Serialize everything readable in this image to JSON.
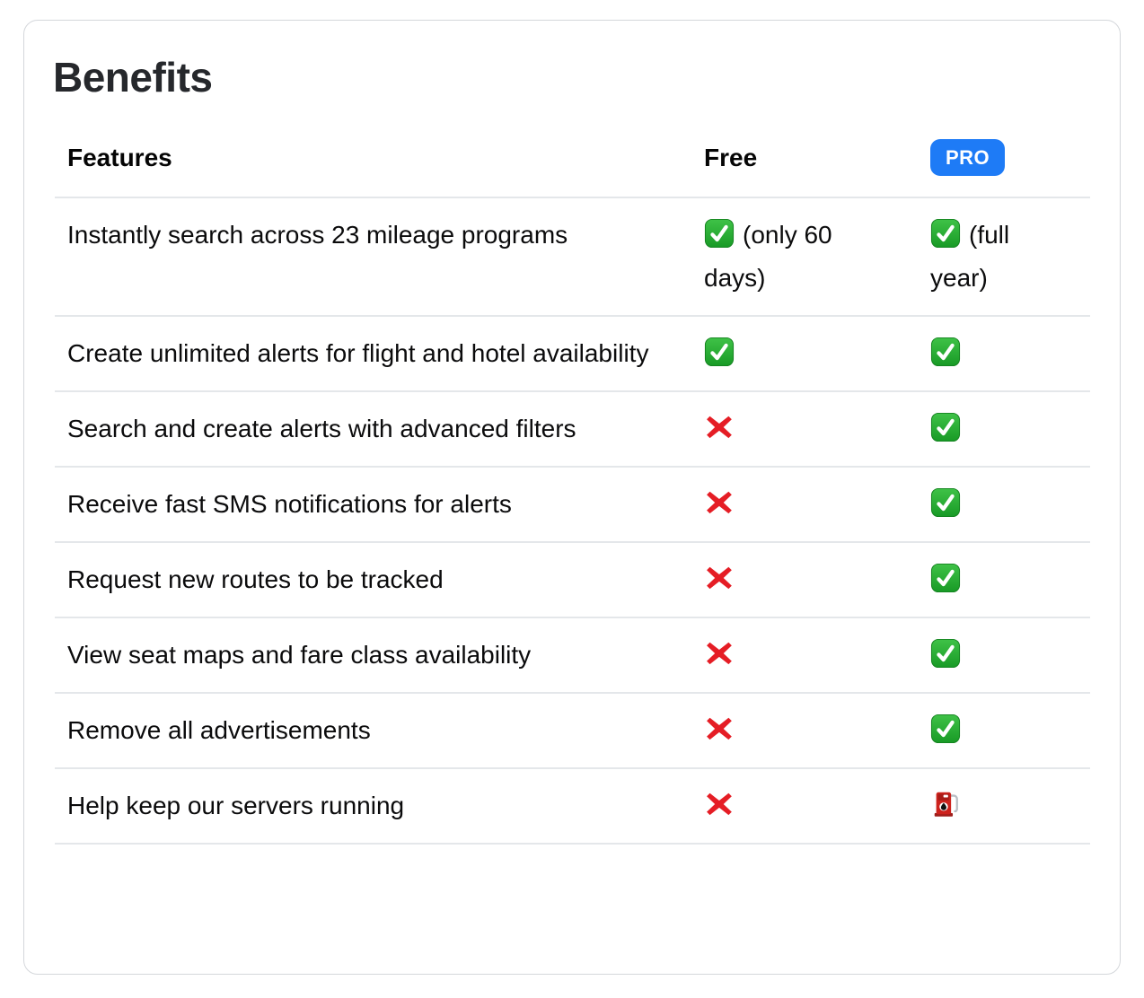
{
  "card": {
    "title": "Benefits"
  },
  "table": {
    "headers": {
      "features": "Features",
      "free": "Free",
      "pro": "PRO"
    },
    "rows": [
      {
        "feature": "Instantly search across 23 mileage programs",
        "free": {
          "icon": "check",
          "label": "(only 60 days)"
        },
        "pro": {
          "icon": "check",
          "label": "(full year)"
        }
      },
      {
        "feature": "Create unlimited alerts for flight and hotel availability",
        "free": {
          "icon": "check",
          "label": ""
        },
        "pro": {
          "icon": "check",
          "label": ""
        }
      },
      {
        "feature": "Search and create alerts with advanced filters",
        "free": {
          "icon": "cross",
          "label": ""
        },
        "pro": {
          "icon": "check",
          "label": ""
        }
      },
      {
        "feature": "Receive fast SMS notifications for alerts",
        "free": {
          "icon": "cross",
          "label": ""
        },
        "pro": {
          "icon": "check",
          "label": ""
        }
      },
      {
        "feature": "Request new routes to be tracked",
        "free": {
          "icon": "cross",
          "label": ""
        },
        "pro": {
          "icon": "check",
          "label": ""
        }
      },
      {
        "feature": "View seat maps and fare class availability",
        "free": {
          "icon": "cross",
          "label": ""
        },
        "pro": {
          "icon": "check",
          "label": ""
        }
      },
      {
        "feature": "Remove all advertisements",
        "free": {
          "icon": "cross",
          "label": ""
        },
        "pro": {
          "icon": "check",
          "label": ""
        }
      },
      {
        "feature": "Help keep our servers running",
        "free": {
          "icon": "cross",
          "label": ""
        },
        "pro": {
          "icon": "fuel-pump",
          "label": ""
        }
      }
    ]
  },
  "colors": {
    "pro_badge_blue": "#1e7bf6",
    "check_green": "#23ab2f",
    "cross_red": "#e51d25",
    "divider_gray": "#e4e7ea",
    "card_border": "#d4d7db",
    "title_text": "#26282c"
  }
}
